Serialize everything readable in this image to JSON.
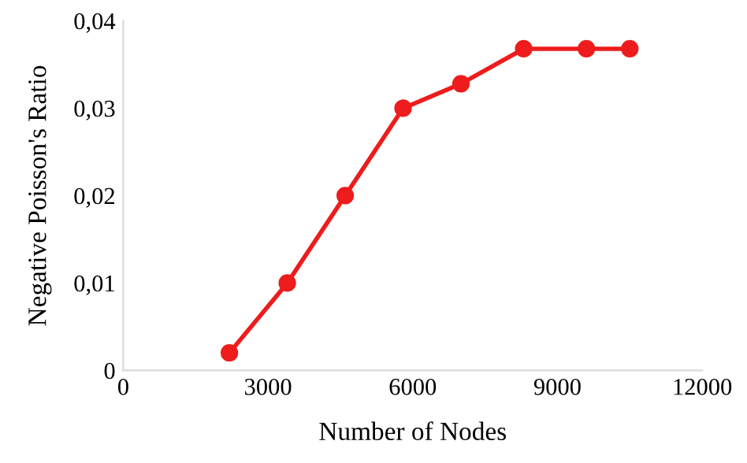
{
  "chart_data": {
    "type": "line",
    "xlabel": "Number of Nodes",
    "ylabel": "Negative Poisson's Ratio",
    "x": [
      2200,
      3400,
      4600,
      5800,
      7000,
      8300,
      9600,
      10500
    ],
    "series": [
      {
        "color": "#ee1c1c",
        "values": [
          0.002,
          0.01,
          0.02,
          0.03,
          0.0328,
          0.0368,
          0.0368,
          0.0368
        ]
      }
    ],
    "xlim": [
      0,
      12000
    ],
    "xticks": [
      0,
      3000,
      6000,
      9000,
      12000
    ],
    "ylim": [
      0,
      0.04
    ],
    "yticks": [
      {
        "value": 0,
        "label": "0"
      },
      {
        "value": 0.01,
        "label": "0,01"
      },
      {
        "value": 0.02,
        "label": "0,02"
      },
      {
        "value": 0.03,
        "label": "0,03"
      },
      {
        "value": 0.04,
        "label": "0,04"
      }
    ],
    "marker": "circle",
    "line_style": "solid",
    "grid": false,
    "legend": false
  }
}
